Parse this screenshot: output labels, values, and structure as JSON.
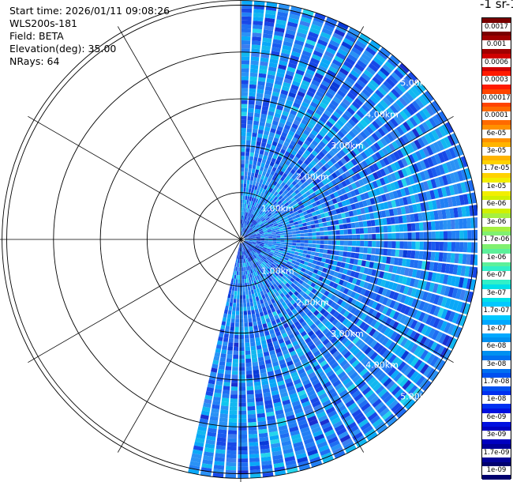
{
  "header": {
    "start_time": "Start time: 2026/01/11 09:08:26",
    "instrument": "WLS200s-181",
    "field": "Field: BETA",
    "elevation": "Elevation(deg): 35.00",
    "nrays": "NRays: 64"
  },
  "colorbar": {
    "title": "-1 sr-1",
    "ticks": [
      "0.0017",
      "0.001",
      "0.0006",
      "0.0003",
      "0.00017",
      "0.0001",
      "6e-05",
      "3e-05",
      "1.7e-05",
      "1e-05",
      "6e-06",
      "3e-06",
      "1.7e-06",
      "1e-06",
      "6e-07",
      "3e-07",
      "1.7e-07",
      "1e-07",
      "6e-08",
      "3e-08",
      "1.7e-08",
      "1e-08",
      "6e-09",
      "3e-09",
      "1.7e-09",
      "1e-09"
    ],
    "colors": [
      "#7a0000",
      "#a00000",
      "#d00000",
      "#ff1a00",
      "#ff4400",
      "#ff6a00",
      "#ff9000",
      "#ffb400",
      "#ffd200",
      "#f2ee00",
      "#d0f000",
      "#a6f040",
      "#80f070",
      "#5cf09a",
      "#30f0c8",
      "#00e0e8",
      "#00c8ff",
      "#00a8ff",
      "#0090f0",
      "#0070f0",
      "#0050f0",
      "#0030f0",
      "#0010e0",
      "#0000c0",
      "#000098",
      "#00006e"
    ]
  },
  "chart_data": {
    "type": "heatmap",
    "projection": "polar-ppi",
    "field": "BETA",
    "elevation_deg": 35.0,
    "n_rays": 64,
    "azimuth_sector_deg": [
      0,
      193
    ],
    "range_km": [
      0,
      5.1
    ],
    "range_rings_km": [
      1,
      2,
      3,
      4,
      5
    ],
    "ring_labels": [
      {
        "text": "1.00km",
        "km": 1,
        "side": "upper"
      },
      {
        "text": "2.00km",
        "km": 2,
        "side": "upper"
      },
      {
        "text": "3.00km",
        "km": 3,
        "side": "upper"
      },
      {
        "text": "4.00km",
        "km": 4,
        "side": "upper"
      },
      {
        "text": "5.00km",
        "km": 5,
        "side": "upper"
      },
      {
        "text": "1.00km",
        "km": 1,
        "side": "lower"
      },
      {
        "text": "2.00km",
        "km": 2,
        "side": "lower"
      },
      {
        "text": "3.00km",
        "km": 3,
        "side": "lower"
      },
      {
        "text": "4.00km",
        "km": 4,
        "side": "lower"
      },
      {
        "text": "5.00km",
        "km": 5,
        "side": "lower"
      }
    ],
    "spokes_deg": [
      0,
      30,
      60,
      90,
      120,
      150,
      180,
      210,
      240,
      270,
      300,
      330
    ],
    "dominant_value_range": [
      "1e-08",
      "1e-07"
    ],
    "colorscale": "log"
  }
}
